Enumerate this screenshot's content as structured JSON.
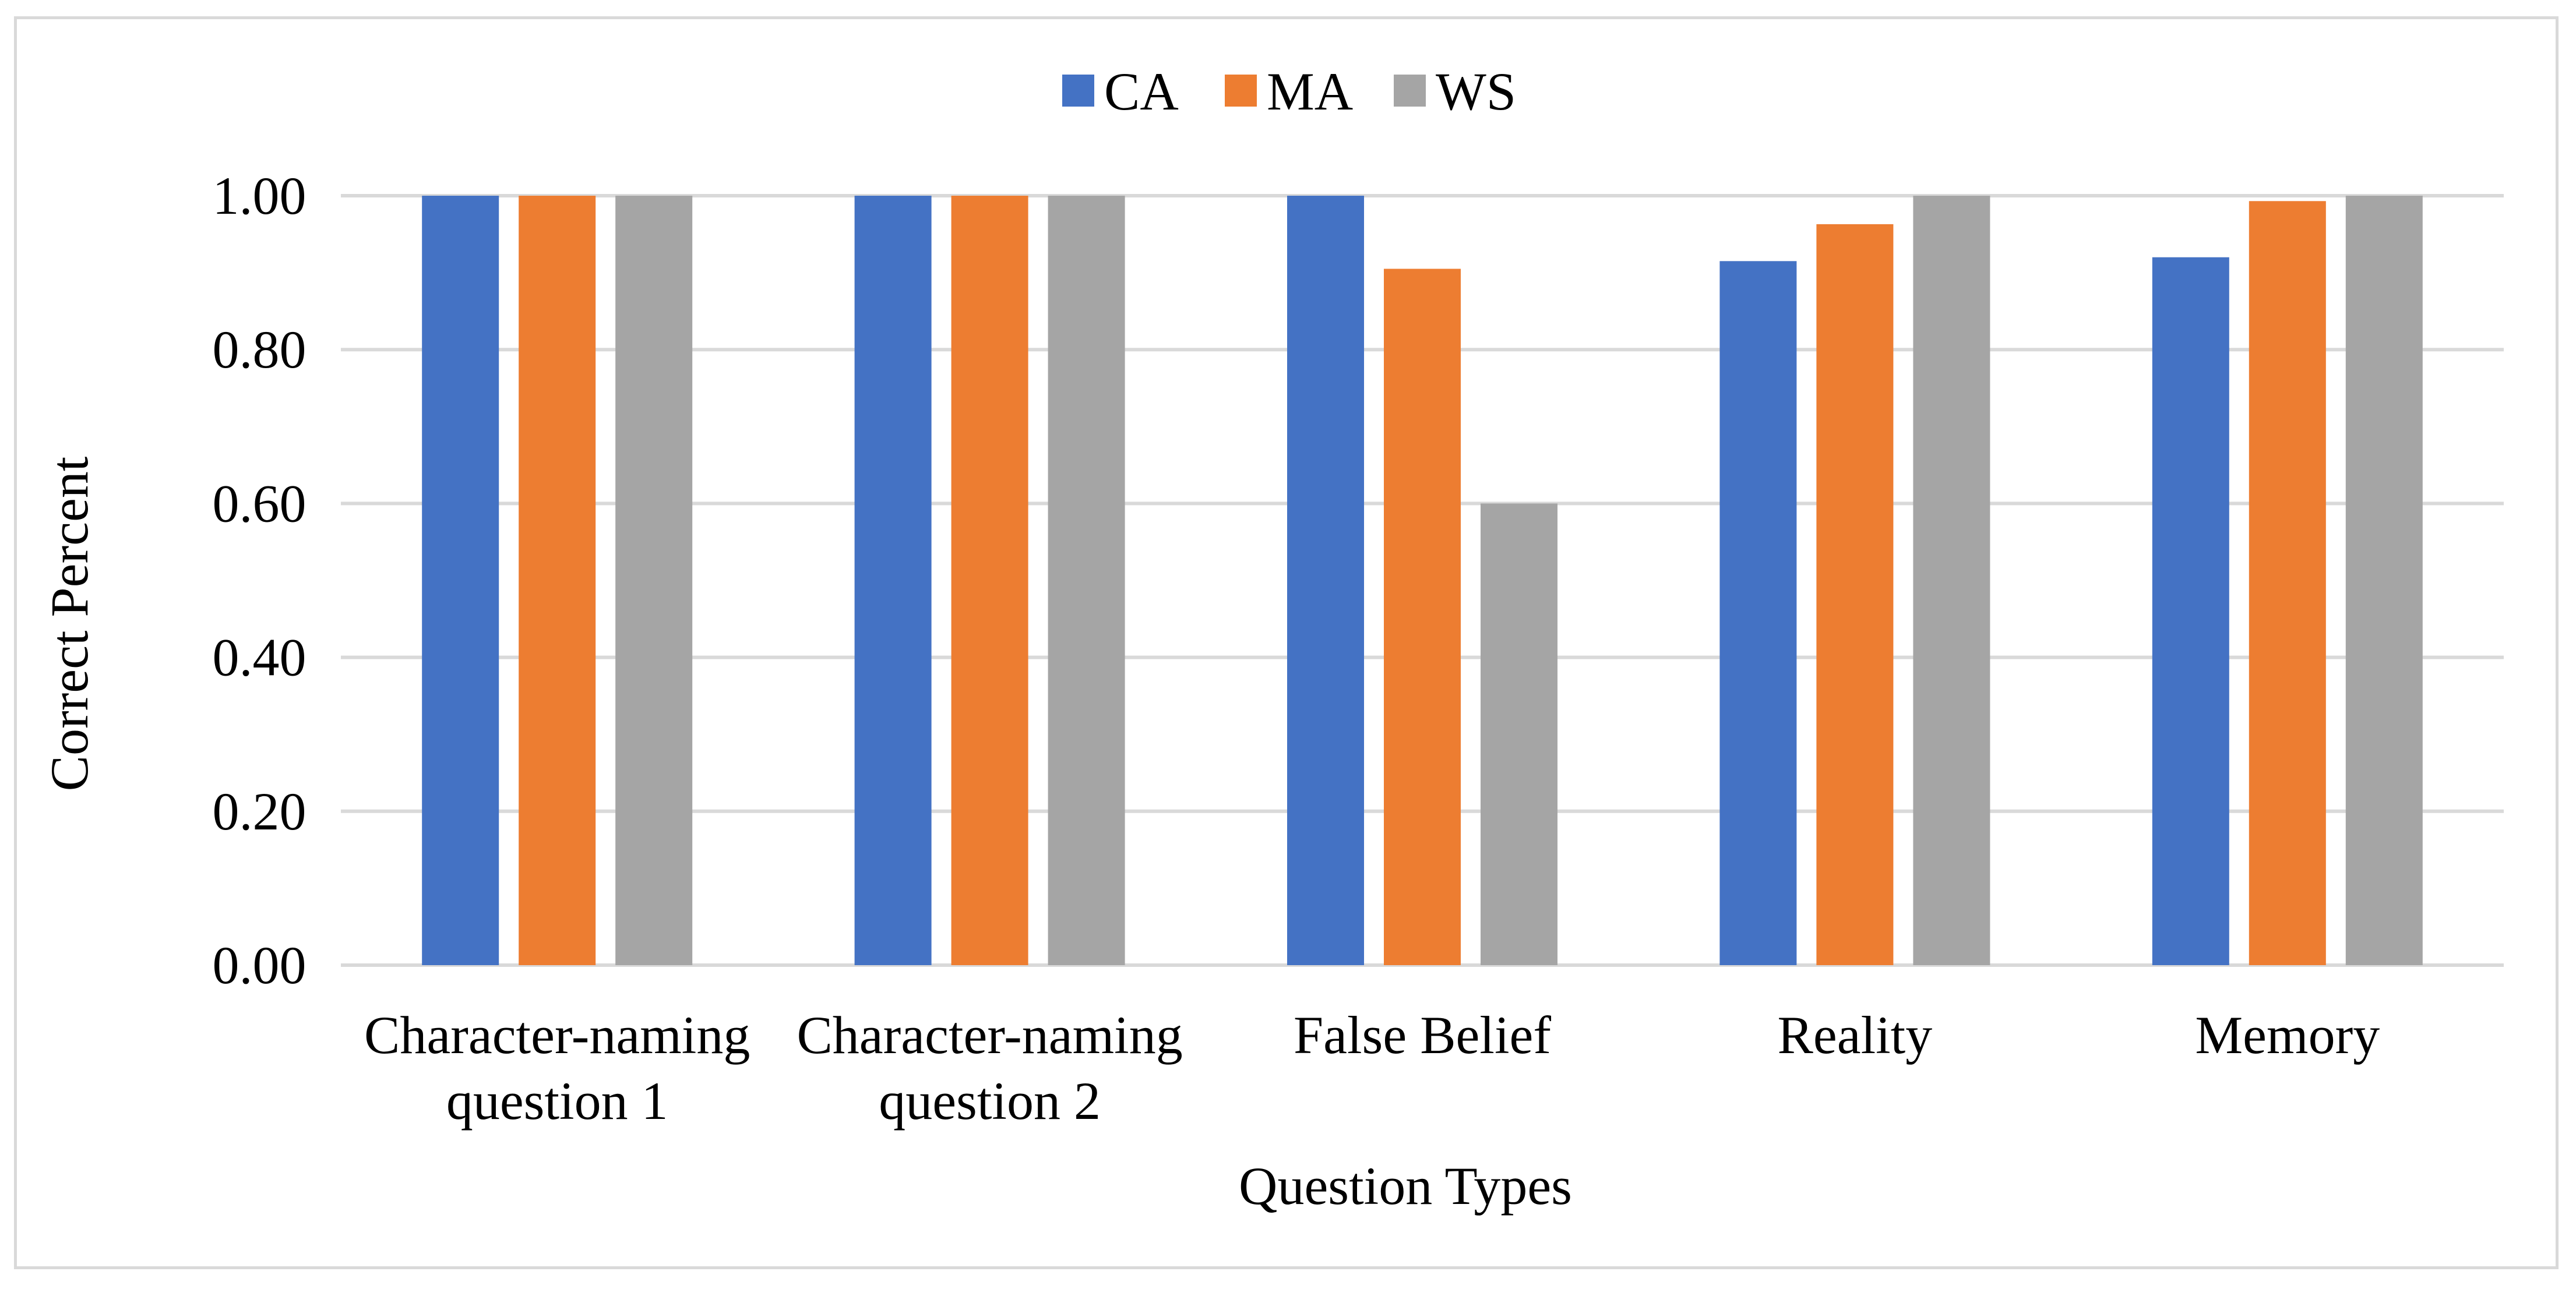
{
  "chart_data": {
    "type": "bar",
    "title": "",
    "xlabel": "Question Types",
    "ylabel": "Correct Percent",
    "categories": [
      [
        "Character-naming",
        "question 1"
      ],
      [
        "Character-naming",
        "question 2"
      ],
      [
        "False Belief"
      ],
      [
        "Reality"
      ],
      [
        "Memory"
      ]
    ],
    "series": [
      {
        "name": "CA",
        "color": "#4472c4",
        "values": [
          1.0,
          1.0,
          1.0,
          0.915,
          0.92
        ]
      },
      {
        "name": "MA",
        "color": "#ed7d31",
        "values": [
          1.0,
          1.0,
          0.905,
          0.963,
          0.993
        ]
      },
      {
        "name": "WS",
        "color": "#a5a5a5",
        "values": [
          1.0,
          1.0,
          0.6,
          1.0,
          1.0
        ]
      }
    ],
    "ylim": [
      0,
      1
    ],
    "yticks": [
      "0.00",
      "0.20",
      "0.40",
      "0.60",
      "0.80",
      "1.00"
    ],
    "grid": true,
    "legend_position": "top-center",
    "colors": {
      "gridline": "#d9d9d9",
      "axis": "#d9d9d9",
      "frame": "#d9d9d9"
    }
  }
}
